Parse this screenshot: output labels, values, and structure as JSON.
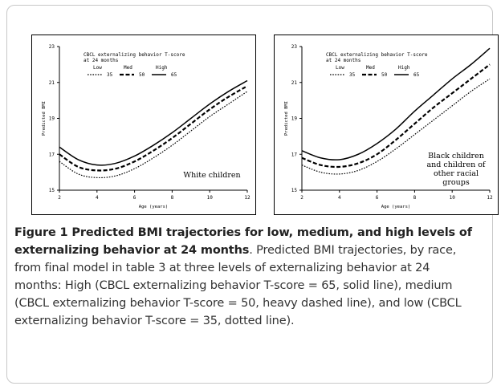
{
  "figure": {
    "caption_title": "Figure 1 Predicted BMI trajectories for low, medium, and high levels of externalizing behavior at 24 months",
    "caption_body": ". Predicted BMI trajectories, by race, from final model in table 3 at three levels of externalizing behavior at 24 months: High (CBCL externalizing behavior T-score = 65, solid line), medium (CBCL externalizing behavior T-score = 50, heavy dashed line), and low (CBCL externalizing behavior T-score = 35, dotted line)."
  },
  "chart_data": [
    {
      "type": "line",
      "xlabel": "Age (years)",
      "ylabel": "Predicted BMI",
      "xlim": [
        2,
        12
      ],
      "ylim": [
        15,
        23
      ],
      "x_ticks": [
        2,
        4,
        6,
        8,
        10,
        12
      ],
      "y_ticks": [
        15,
        17,
        19,
        21,
        23
      ],
      "legend_title": "CBCL externalizing behavior T-score at 24 months",
      "legend_headers": [
        "Low",
        "Med",
        "High"
      ],
      "legend_placement": "top-left",
      "annotation": "White children",
      "x": [
        2,
        3,
        4,
        5,
        6,
        7,
        8,
        9,
        10,
        11,
        12
      ],
      "series": [
        {
          "name": "35",
          "style": "dotted",
          "values": [
            16.6,
            15.9,
            15.7,
            15.8,
            16.2,
            16.8,
            17.5,
            18.3,
            19.1,
            19.8,
            20.5
          ]
        },
        {
          "name": "50",
          "style": "dashed",
          "values": [
            17.0,
            16.3,
            16.1,
            16.2,
            16.6,
            17.2,
            17.9,
            18.7,
            19.5,
            20.2,
            20.8
          ]
        },
        {
          "name": "65",
          "style": "solid",
          "values": [
            17.4,
            16.7,
            16.4,
            16.5,
            16.9,
            17.5,
            18.2,
            19.0,
            19.8,
            20.5,
            21.1
          ]
        }
      ]
    },
    {
      "type": "line",
      "xlabel": "Age (years)",
      "ylabel": "Predicted BMI",
      "xlim": [
        2,
        12
      ],
      "ylim": [
        15,
        23
      ],
      "x_ticks": [
        2,
        4,
        6,
        8,
        10,
        12
      ],
      "y_ticks": [
        15,
        17,
        19,
        21,
        23
      ],
      "legend_title": "CBCL externalizing behavior T-score at 24 months",
      "legend_headers": [
        "Low",
        "Med",
        "High"
      ],
      "legend_placement": "top-left",
      "annotation": "Black children and children of other racial groups",
      "x": [
        2,
        3,
        4,
        5,
        6,
        7,
        8,
        9,
        10,
        11,
        12
      ],
      "series": [
        {
          "name": "35",
          "style": "dotted",
          "values": [
            16.4,
            16.0,
            15.9,
            16.1,
            16.6,
            17.3,
            18.1,
            18.9,
            19.7,
            20.5,
            21.2
          ]
        },
        {
          "name": "50",
          "style": "dashed",
          "values": [
            16.8,
            16.4,
            16.3,
            16.5,
            17.0,
            17.8,
            18.7,
            19.6,
            20.4,
            21.2,
            22.0
          ]
        },
        {
          "name": "65",
          "style": "solid",
          "values": [
            17.2,
            16.8,
            16.7,
            17.0,
            17.6,
            18.4,
            19.4,
            20.3,
            21.2,
            22.0,
            22.9
          ]
        }
      ]
    }
  ]
}
